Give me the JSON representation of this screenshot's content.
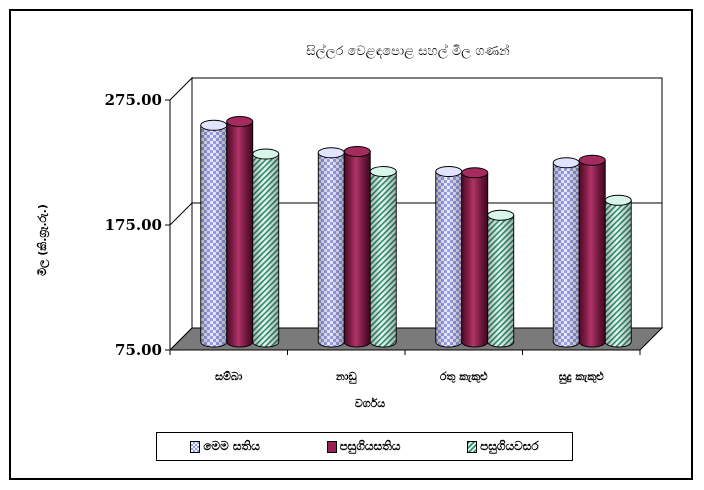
{
  "chart_data": {
    "type": "bar",
    "title": "සිල්ලර වෙළඳපොළ සහල් මිල ගණන්",
    "xlabel": "වර්ගය",
    "ylabel": "මිල (කි.ග්‍රෑ.රු.)",
    "categories": [
      "සම්බා",
      "නාඩු",
      "රතු කැකුළු",
      "සුදු කැකුළු"
    ],
    "ylim": [
      75,
      275
    ],
    "yticks": [
      "75.00",
      "175.00",
      "275.00"
    ],
    "series": [
      {
        "name": "මෙම සතිය",
        "values": [
          246,
          224,
          209,
          216
        ]
      },
      {
        "name": "පසුගියසතිය",
        "values": [
          249,
          225,
          208,
          218
        ]
      },
      {
        "name": "පසුගියවසර",
        "values": [
          223,
          209,
          174,
          186
        ]
      }
    ],
    "grid": true,
    "legend": "bottom",
    "colors": [
      "#9ea0ee",
      "#9b2054",
      "#2f8f70"
    ]
  }
}
